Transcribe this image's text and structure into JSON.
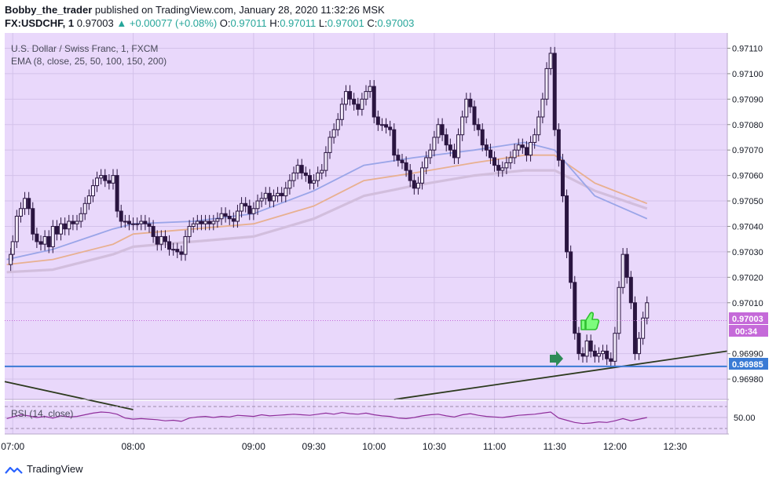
{
  "header": {
    "author": "Bobby_the_trader",
    "published": "published on TradingView.com, January 28, 2020 11:32:26 MSK",
    "symbol": "FX:USDCHF, 1",
    "last": "0.97003",
    "change": "▲ +0.00077 (+0.08%)",
    "o_label": "O:",
    "o": "0.97011",
    "h_label": "H:",
    "h": "0.97011",
    "l_label": "L:",
    "l": "0.97001",
    "c_label": "C:",
    "c": "0.97003"
  },
  "legend": {
    "title": "U.S. Dollar / Swiss Franc, 1, FXCM",
    "ema": "EMA (8, close, 25, 50, 100, 150, 200)"
  },
  "rsi_label": "RSI (14, close)",
  "rsi_level_label": "50.00",
  "price_badge": "0.97003",
  "countdown_badge": "00:34",
  "level_badge": "0.96985",
  "footer_brand": "TradingView",
  "colors": {
    "background": "#e9d8fb",
    "candle": "#2a1540",
    "level_line": "#3a7bd5",
    "badge": "#c56ad9",
    "level_badge": "#3a7bd5",
    "trendline": "#2d3a1e",
    "ema_fast": "#9aa5e8",
    "ema_mid": "#e8b090",
    "ema_slow": "#d2bedd",
    "rsi_line": "#8f2e9c",
    "thumb": "#3dd63d",
    "arrow": "#2e8b57"
  },
  "icons": [
    "thumbs-up-icon",
    "arrow-right-icon",
    "tradingview-logo-icon"
  ],
  "chart_data": {
    "type": "candlestick",
    "x_tick_labels": [
      "07:00",
      "08:00",
      "09:00",
      "09:30",
      "10:00",
      "10:30",
      "11:00",
      "11:30",
      "12:00",
      "12:30"
    ],
    "x_ticks_minutes": [
      0,
      60,
      120,
      150,
      180,
      210,
      240,
      270,
      300,
      330
    ],
    "y_tick_labels": [
      "0.97110",
      "0.97100",
      "0.97090",
      "0.97080",
      "0.97070",
      "0.97060",
      "0.97050",
      "0.97040",
      "0.97030",
      "0.97020",
      "0.97010",
      "0.96990",
      "0.96980"
    ],
    "y_ticks": [
      0.9711,
      0.971,
      0.9709,
      0.9708,
      0.9707,
      0.9706,
      0.9705,
      0.9704,
      0.9703,
      0.9702,
      0.9701,
      0.9699,
      0.9698
    ],
    "x_range_minutes": [
      -4,
      356
    ],
    "y_range": [
      0.96972,
      0.97116
    ],
    "close_series": [
      [
        -3,
        0.97025
      ],
      [
        -1,
        0.97029
      ],
      [
        0,
        0.97034
      ],
      [
        2,
        0.97044
      ],
      [
        4,
        0.97047
      ],
      [
        6,
        0.97051
      ],
      [
        8,
        0.97047
      ],
      [
        10,
        0.97037
      ],
      [
        12,
        0.97034
      ],
      [
        14,
        0.97033
      ],
      [
        16,
        0.97036
      ],
      [
        18,
        0.97032
      ],
      [
        20,
        0.9704
      ],
      [
        22,
        0.97037
      ],
      [
        24,
        0.97041
      ],
      [
        26,
        0.97039
      ],
      [
        28,
        0.97042
      ],
      [
        30,
        0.97041
      ],
      [
        32,
        0.97042
      ],
      [
        34,
        0.97045
      ],
      [
        36,
        0.97049
      ],
      [
        38,
        0.97052
      ],
      [
        40,
        0.97056
      ],
      [
        42,
        0.97059
      ],
      [
        44,
        0.9706
      ],
      [
        46,
        0.97058
      ],
      [
        48,
        0.97057
      ],
      [
        50,
        0.9706
      ],
      [
        52,
        0.97046
      ],
      [
        54,
        0.97042
      ],
      [
        56,
        0.97042
      ],
      [
        58,
        0.97041
      ],
      [
        60,
        0.97041
      ],
      [
        62,
        0.97041
      ],
      [
        64,
        0.97042
      ],
      [
        66,
        0.97041
      ],
      [
        68,
        0.9704
      ],
      [
        70,
        0.97036
      ],
      [
        72,
        0.97033
      ],
      [
        74,
        0.97036
      ],
      [
        76,
        0.97034
      ],
      [
        78,
        0.97031
      ],
      [
        80,
        0.97031
      ],
      [
        82,
        0.9703
      ],
      [
        84,
        0.97029
      ],
      [
        86,
        0.97036
      ],
      [
        88,
        0.9704
      ],
      [
        90,
        0.97041
      ],
      [
        92,
        0.97042
      ],
      [
        94,
        0.97041
      ],
      [
        96,
        0.97042
      ],
      [
        98,
        0.97041
      ],
      [
        100,
        0.97042
      ],
      [
        102,
        0.97043
      ],
      [
        104,
        0.97045
      ],
      [
        106,
        0.97044
      ],
      [
        108,
        0.97043
      ],
      [
        110,
        0.97042
      ],
      [
        112,
        0.97046
      ],
      [
        114,
        0.97049
      ],
      [
        116,
        0.97048
      ],
      [
        118,
        0.97045
      ],
      [
        120,
        0.97047
      ],
      [
        122,
        0.9705
      ],
      [
        124,
        0.97051
      ],
      [
        126,
        0.97053
      ],
      [
        128,
        0.9705
      ],
      [
        130,
        0.97052
      ],
      [
        132,
        0.97053
      ],
      [
        134,
        0.97052
      ],
      [
        136,
        0.97055
      ],
      [
        138,
        0.97058
      ],
      [
        140,
        0.97061
      ],
      [
        142,
        0.97064
      ],
      [
        144,
        0.97061
      ],
      [
        146,
        0.9706
      ],
      [
        148,
        0.97057
      ],
      [
        150,
        0.97058
      ],
      [
        152,
        0.97061
      ],
      [
        154,
        0.97062
      ],
      [
        156,
        0.97069
      ],
      [
        158,
        0.97075
      ],
      [
        160,
        0.97078
      ],
      [
        162,
        0.97082
      ],
      [
        164,
        0.97088
      ],
      [
        166,
        0.97093
      ],
      [
        168,
        0.9709
      ],
      [
        170,
        0.97088
      ],
      [
        172,
        0.97086
      ],
      [
        174,
        0.9709
      ],
      [
        176,
        0.97093
      ],
      [
        178,
        0.97095
      ],
      [
        180,
        0.97083
      ],
      [
        182,
        0.9708
      ],
      [
        184,
        0.9708
      ],
      [
        186,
        0.97079
      ],
      [
        188,
        0.97078
      ],
      [
        190,
        0.97068
      ],
      [
        192,
        0.97066
      ],
      [
        194,
        0.97065
      ],
      [
        196,
        0.97062
      ],
      [
        198,
        0.97058
      ],
      [
        200,
        0.97055
      ],
      [
        202,
        0.97057
      ],
      [
        204,
        0.97063
      ],
      [
        206,
        0.97067
      ],
      [
        208,
        0.9707
      ],
      [
        210,
        0.97075
      ],
      [
        212,
        0.9708
      ],
      [
        214,
        0.97076
      ],
      [
        216,
        0.97072
      ],
      [
        218,
        0.9707
      ],
      [
        220,
        0.97067
      ],
      [
        222,
        0.97076
      ],
      [
        224,
        0.97083
      ],
      [
        226,
        0.9709
      ],
      [
        228,
        0.97087
      ],
      [
        230,
        0.9708
      ],
      [
        232,
        0.97078
      ],
      [
        234,
        0.97072
      ],
      [
        236,
        0.9707
      ],
      [
        238,
        0.97067
      ],
      [
        240,
        0.97064
      ],
      [
        242,
        0.97062
      ],
      [
        244,
        0.97063
      ],
      [
        246,
        0.97065
      ],
      [
        248,
        0.97067
      ],
      [
        250,
        0.9707
      ],
      [
        252,
        0.97072
      ],
      [
        254,
        0.97071
      ],
      [
        256,
        0.97068
      ],
      [
        258,
        0.97073
      ],
      [
        260,
        0.97076
      ],
      [
        262,
        0.97083
      ],
      [
        264,
        0.9709
      ],
      [
        266,
        0.97102
      ],
      [
        268,
        0.97108
      ],
      [
        270,
        0.97078
      ],
      [
        272,
        0.97066
      ],
      [
        274,
        0.97052
      ],
      [
        276,
        0.9703
      ],
      [
        278,
        0.97018
      ],
      [
        280,
        0.96998
      ],
      [
        282,
        0.9699
      ],
      [
        284,
        0.96989
      ],
      [
        286,
        0.96995
      ],
      [
        288,
        0.96991
      ],
      [
        290,
        0.96989
      ],
      [
        292,
        0.9699
      ],
      [
        294,
        0.96991
      ],
      [
        296,
        0.96988
      ],
      [
        298,
        0.96987
      ],
      [
        300,
        0.96998
      ],
      [
        302,
        0.97016
      ],
      [
        304,
        0.97029
      ],
      [
        306,
        0.9702
      ],
      [
        308,
        0.9701
      ],
      [
        310,
        0.9699
      ],
      [
        312,
        0.96996
      ],
      [
        314,
        0.97004
      ],
      [
        316,
        0.9701
      ]
    ],
    "ema_fast": [
      [
        -3,
        0.97027
      ],
      [
        20,
        0.97031
      ],
      [
        50,
        0.97039
      ],
      [
        60,
        0.97041
      ],
      [
        90,
        0.97042
      ],
      [
        120,
        0.97045
      ],
      [
        150,
        0.97054
      ],
      [
        175,
        0.97064
      ],
      [
        200,
        0.97067
      ],
      [
        230,
        0.9707
      ],
      [
        255,
        0.97073
      ],
      [
        270,
        0.9707
      ],
      [
        290,
        0.97052
      ],
      [
        316,
        0.97043
      ]
    ],
    "ema_mid": [
      [
        -3,
        0.97025
      ],
      [
        20,
        0.97027
      ],
      [
        50,
        0.97033
      ],
      [
        60,
        0.97037
      ],
      [
        90,
        0.97039
      ],
      [
        120,
        0.97041
      ],
      [
        150,
        0.97048
      ],
      [
        175,
        0.97058
      ],
      [
        200,
        0.97061
      ],
      [
        230,
        0.97065
      ],
      [
        255,
        0.97068
      ],
      [
        270,
        0.97068
      ],
      [
        290,
        0.97057
      ],
      [
        316,
        0.97049
      ]
    ],
    "ema_slow": [
      [
        -3,
        0.97022
      ],
      [
        20,
        0.97023
      ],
      [
        50,
        0.97029
      ],
      [
        60,
        0.97032
      ],
      [
        90,
        0.97034
      ],
      [
        120,
        0.97036
      ],
      [
        150,
        0.97043
      ],
      [
        175,
        0.97052
      ],
      [
        200,
        0.97056
      ],
      [
        230,
        0.9706
      ],
      [
        255,
        0.97062
      ],
      [
        270,
        0.97062
      ],
      [
        290,
        0.97054
      ],
      [
        316,
        0.97047
      ]
    ],
    "horizontal_level": 0.96985,
    "last_price": 0.97003,
    "trendline_1": [
      [
        -4,
        0.96979
      ],
      [
        60,
        0.96968
      ]
    ],
    "trendline_2": [
      [
        190,
        0.96972
      ],
      [
        356,
        0.96991
      ]
    ],
    "rsi_level": 50,
    "rsi_series": [
      [
        -3,
        48
      ],
      [
        0,
        51
      ],
      [
        4,
        55
      ],
      [
        8,
        53
      ],
      [
        12,
        50
      ],
      [
        16,
        52
      ],
      [
        20,
        49
      ],
      [
        24,
        53
      ],
      [
        28,
        51
      ],
      [
        32,
        52
      ],
      [
        36,
        55
      ],
      [
        40,
        58
      ],
      [
        44,
        60
      ],
      [
        48,
        59
      ],
      [
        52,
        56
      ],
      [
        56,
        49
      ],
      [
        60,
        47
      ],
      [
        64,
        48
      ],
      [
        68,
        47
      ],
      [
        72,
        46
      ],
      [
        76,
        44
      ],
      [
        80,
        45
      ],
      [
        84,
        43
      ],
      [
        88,
        49
      ],
      [
        92,
        51
      ],
      [
        96,
        52
      ],
      [
        100,
        50
      ],
      [
        104,
        52
      ],
      [
        108,
        51
      ],
      [
        112,
        54
      ],
      [
        116,
        53
      ],
      [
        120,
        52
      ],
      [
        124,
        55
      ],
      [
        128,
        53
      ],
      [
        132,
        54
      ],
      [
        136,
        55
      ],
      [
        140,
        56
      ],
      [
        144,
        55
      ],
      [
        148,
        54
      ],
      [
        152,
        56
      ],
      [
        156,
        58
      ],
      [
        160,
        56
      ],
      [
        164,
        59
      ],
      [
        168,
        57
      ],
      [
        172,
        56
      ],
      [
        176,
        58
      ],
      [
        180,
        55
      ],
      [
        184,
        53
      ],
      [
        188,
        52
      ],
      [
        192,
        49
      ],
      [
        196,
        48
      ],
      [
        200,
        50
      ],
      [
        204,
        53
      ],
      [
        208,
        55
      ],
      [
        212,
        56
      ],
      [
        216,
        53
      ],
      [
        220,
        51
      ],
      [
        224,
        55
      ],
      [
        228,
        57
      ],
      [
        232,
        54
      ],
      [
        236,
        52
      ],
      [
        240,
        51
      ],
      [
        244,
        50
      ],
      [
        248,
        52
      ],
      [
        252,
        54
      ],
      [
        256,
        55
      ],
      [
        260,
        56
      ],
      [
        264,
        58
      ],
      [
        268,
        60
      ],
      [
        272,
        49
      ],
      [
        276,
        45
      ],
      [
        280,
        41
      ],
      [
        284,
        39
      ],
      [
        288,
        40
      ],
      [
        292,
        42
      ],
      [
        296,
        41
      ],
      [
        300,
        44
      ],
      [
        304,
        48
      ],
      [
        308,
        44
      ],
      [
        312,
        47
      ],
      [
        316,
        50
      ]
    ]
  }
}
